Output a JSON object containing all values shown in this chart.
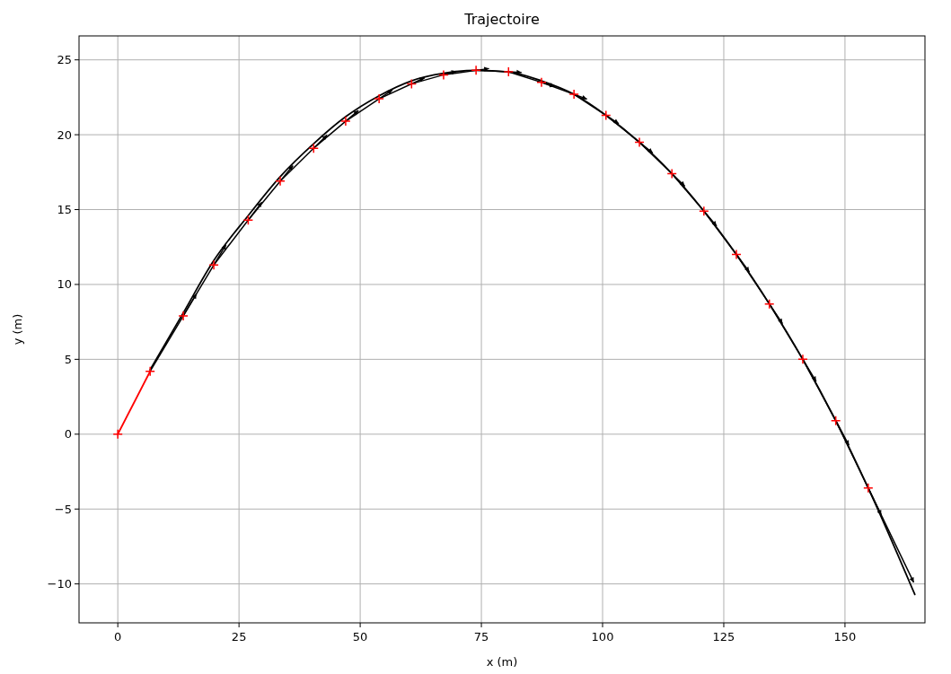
{
  "chart_data": {
    "type": "line",
    "title": "Trajectoire",
    "xlabel": "x (m)",
    "ylabel": "y (m)",
    "xlim": [
      -8.0,
      166.5
    ],
    "ylim": [
      -12.6,
      26.6
    ],
    "xticks": [
      0,
      25,
      50,
      75,
      100,
      125,
      150
    ],
    "yticks": [
      -10,
      -5,
      0,
      5,
      10,
      15,
      20,
      25
    ],
    "grid": true,
    "series": [
      {
        "color": "#000000",
        "line_style": "solid",
        "marker": "none",
        "x": [
          6.67,
          13.5,
          19.8,
          26.9,
          33.5,
          40.4,
          47.0,
          53.9,
          60.6,
          67.2,
          73.9,
          80.6,
          87.4,
          94.1,
          100.7,
          107.6,
          114.3,
          120.9,
          127.6,
          134.4,
          141.3,
          148.1,
          154.8,
          164.4
        ],
        "values": [
          4.3,
          8.1,
          11.6,
          14.6,
          17.2,
          19.4,
          21.2,
          22.6,
          23.6,
          24.1,
          24.3,
          24.2,
          23.6,
          22.7,
          21.3,
          19.5,
          17.4,
          14.9,
          12.0,
          8.7,
          5.0,
          0.9,
          -3.6,
          -10.7
        ]
      },
      {
        "color": "#ff0000",
        "line_style": "solid",
        "marker": "none",
        "x": [
          0,
          6.67
        ],
        "values": [
          0,
          4.2
        ]
      },
      {
        "type": "scatter",
        "color": "#ff0000",
        "marker": "cross",
        "x": [
          0,
          6.67,
          13.5,
          19.8,
          26.9,
          33.5,
          40.4,
          47.0,
          53.9,
          60.6,
          67.2,
          73.9,
          80.6,
          87.4,
          94.1,
          100.7,
          107.6,
          114.3,
          120.9,
          127.6,
          134.4,
          141.3,
          148.1,
          154.8
        ],
        "values": [
          0,
          4.2,
          7.9,
          11.3,
          14.3,
          16.9,
          19.1,
          20.9,
          22.4,
          23.4,
          24.0,
          24.3,
          24.2,
          23.5,
          22.7,
          21.3,
          19.5,
          17.4,
          14.9,
          12.0,
          8.7,
          5.0,
          0.9,
          -3.6
        ]
      }
    ]
  }
}
